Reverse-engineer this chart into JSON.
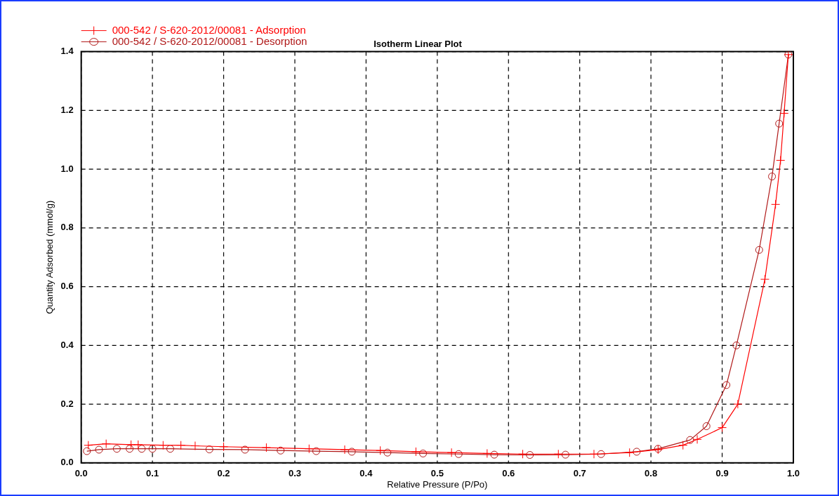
{
  "chart_data": {
    "type": "line",
    "title": "Isotherm Linear Plot",
    "xlabel": "Relative Pressure (P/Po)",
    "ylabel": "Quantity Adsorbed (mmol/g)",
    "xlim": [
      0,
      1
    ],
    "xticks": [
      {
        "value": 0,
        "label": "0.0"
      },
      0.1,
      0.2,
      0.3,
      0.4,
      0.5,
      0.6,
      0.7,
      0.8,
      0.9,
      {
        "value": 1,
        "label": "1.0"
      }
    ],
    "ylim": [
      0,
      1.4
    ],
    "yticks": [
      {
        "value": 0,
        "label": "0.0"
      },
      0.2,
      0.4,
      0.6,
      0.8,
      {
        "value": 1,
        "label": "1.0"
      },
      1.2,
      1.4
    ],
    "grid": true,
    "legend": "top left",
    "series": [
      {
        "name": "000-542 / S-620-2012/00081 - Adsorption",
        "color": "#ff0000",
        "marker": "cross",
        "x": [
          0.01,
          0.035,
          0.07,
          0.08,
          0.115,
          0.14,
          0.16,
          0.2,
          0.26,
          0.32,
          0.37,
          0.42,
          0.47,
          0.52,
          0.57,
          0.62,
          0.67,
          0.72,
          0.77,
          0.81,
          0.845,
          0.865,
          0.9,
          0.922,
          0.96,
          0.975,
          0.982,
          0.987,
          0.993
        ],
        "values": [
          0.06,
          0.065,
          0.062,
          0.062,
          0.06,
          0.06,
          0.058,
          0.055,
          0.052,
          0.048,
          0.045,
          0.042,
          0.038,
          0.035,
          0.032,
          0.03,
          0.03,
          0.03,
          0.035,
          0.045,
          0.06,
          0.08,
          0.12,
          0.2,
          0.625,
          0.88,
          1.03,
          1.19,
          1.39
        ]
      },
      {
        "name": "000-542 / S-620-2012/00081 - Desorption",
        "color": "#b01818",
        "marker": "circle",
        "x": [
          0.993,
          0.98,
          0.97,
          0.952,
          0.92,
          0.906,
          0.878,
          0.855,
          0.81,
          0.78,
          0.73,
          0.68,
          0.63,
          0.58,
          0.53,
          0.48,
          0.43,
          0.38,
          0.33,
          0.28,
          0.23,
          0.18,
          0.125,
          0.1,
          0.085,
          0.068,
          0.05,
          0.025,
          0.008
        ],
        "values": [
          1.39,
          1.155,
          0.975,
          0.725,
          0.4,
          0.265,
          0.125,
          0.078,
          0.048,
          0.038,
          0.03,
          0.028,
          0.027,
          0.028,
          0.03,
          0.032,
          0.035,
          0.038,
          0.04,
          0.042,
          0.045,
          0.046,
          0.048,
          0.048,
          0.048,
          0.048,
          0.048,
          0.045,
          0.04
        ]
      }
    ]
  }
}
